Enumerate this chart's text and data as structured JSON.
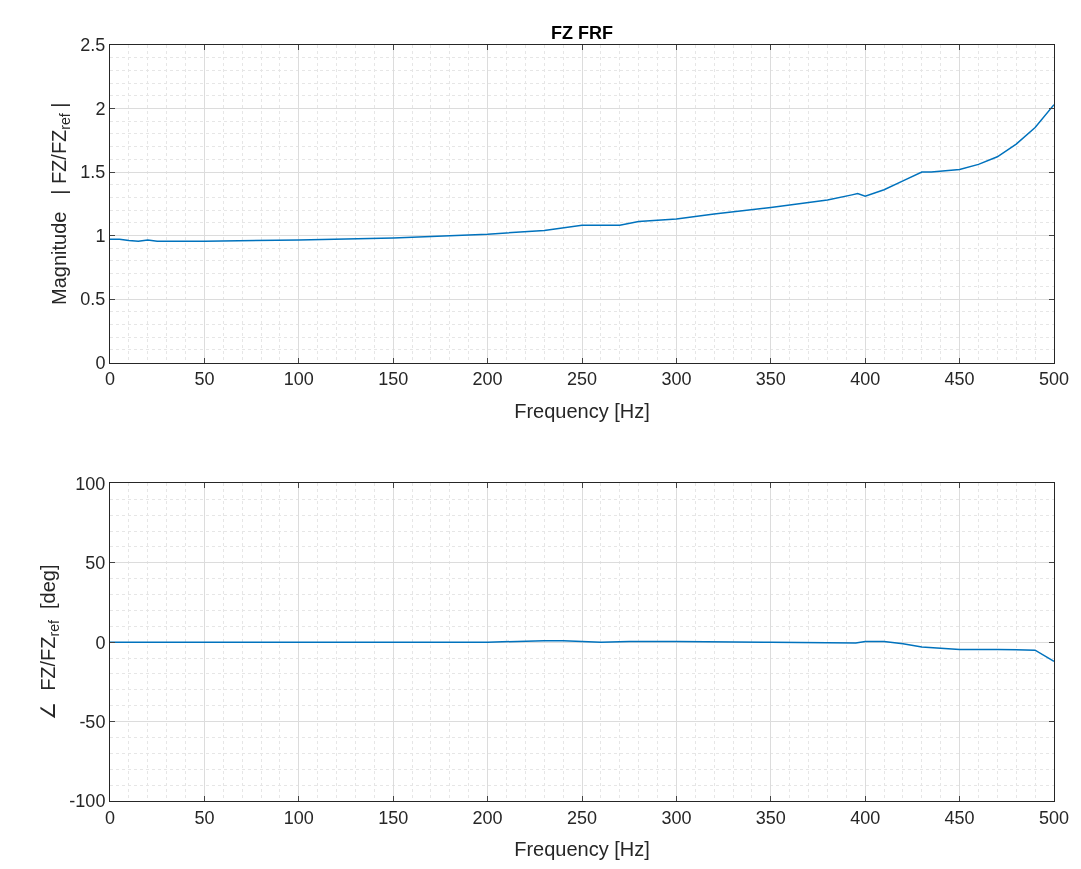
{
  "chart_data": [
    {
      "type": "line",
      "title": "FZ FRF",
      "xlabel": "Frequency [Hz]",
      "ylabel": "Magnitude   | FZ/FZ$_{ref}$ |",
      "xlim": [
        0,
        500
      ],
      "xticks": [
        0,
        50,
        100,
        150,
        200,
        250,
        300,
        350,
        400,
        450,
        500
      ],
      "ylim": [
        0,
        2.5
      ],
      "yticks": [
        0,
        0.5,
        1,
        1.5,
        2,
        2.5
      ],
      "grid": true,
      "series": [
        {
          "color": "#0072bd",
          "x": [
            0,
            5,
            10,
            15,
            20,
            25,
            50,
            100,
            150,
            200,
            230,
            250,
            260,
            270,
            280,
            300,
            320,
            350,
            380,
            393,
            396,
            400,
            410,
            420,
            430,
            435,
            450,
            460,
            470,
            480,
            490,
            500
          ],
          "values": [
            0.97,
            0.97,
            0.96,
            0.955,
            0.965,
            0.955,
            0.955,
            0.965,
            0.98,
            1.01,
            1.04,
            1.08,
            1.08,
            1.08,
            1.11,
            1.13,
            1.17,
            1.22,
            1.28,
            1.32,
            1.33,
            1.31,
            1.36,
            1.43,
            1.5,
            1.5,
            1.52,
            1.56,
            1.62,
            1.72,
            1.85,
            2.03
          ]
        }
      ]
    },
    {
      "type": "line",
      "xlabel": "Frequency [Hz]",
      "ylabel": "∠  FZ/FZ$_{ref}$  [deg]",
      "xlim": [
        0,
        500
      ],
      "xticks": [
        0,
        50,
        100,
        150,
        200,
        250,
        300,
        350,
        400,
        450,
        500
      ],
      "ylim": [
        -100,
        100
      ],
      "yticks": [
        -100,
        -50,
        0,
        50,
        100
      ],
      "grid": true,
      "series": [
        {
          "color": "#0072bd",
          "x": [
            0,
            50,
            100,
            200,
            230,
            240,
            260,
            275,
            300,
            350,
            395,
            400,
            410,
            420,
            430,
            450,
            470,
            490,
            500
          ],
          "values": [
            0,
            0,
            0,
            0,
            1,
            1,
            0,
            0.5,
            0.5,
            0,
            -0.5,
            0.5,
            0.5,
            -1,
            -3,
            -4.5,
            -4.5,
            -5,
            -12
          ]
        }
      ]
    }
  ]
}
